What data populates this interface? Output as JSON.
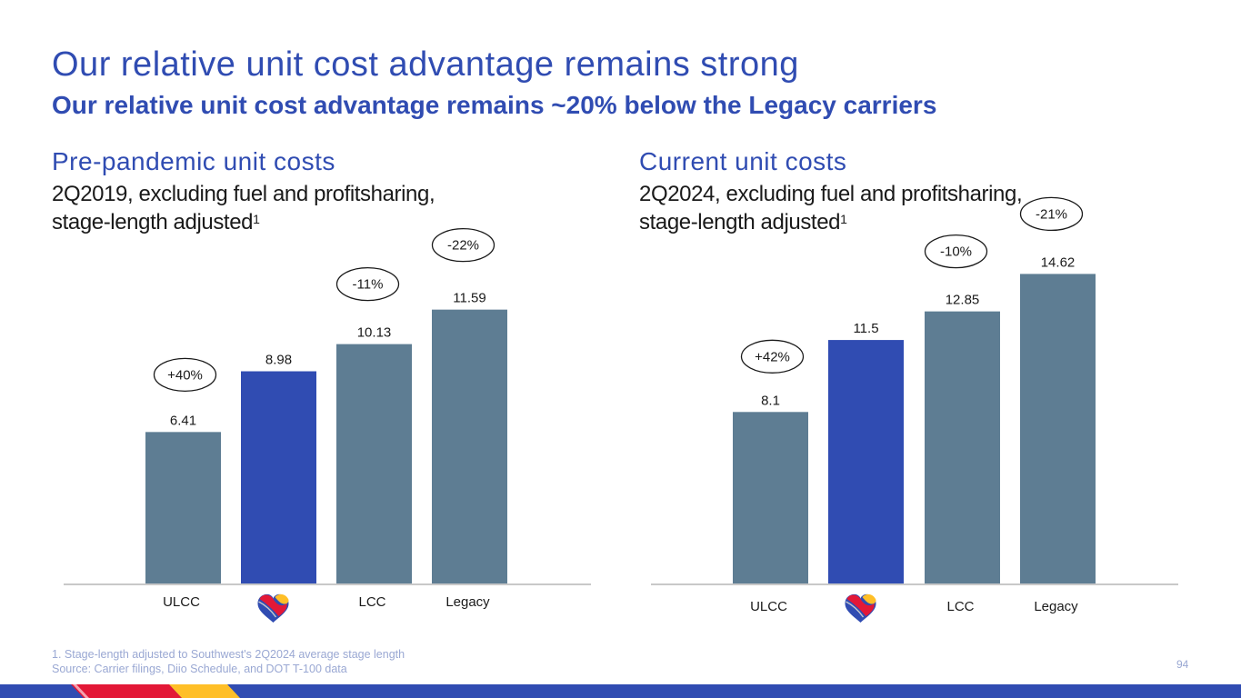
{
  "title": "Our relative unit cost advantage remains strong",
  "subtitle": "Our relative unit cost advantage remains ~20% below the Legacy carriers",
  "left_panel": {
    "heading": "Pre-pandemic unit costs",
    "desc_line1": "2Q2019, excluding fuel and profitsharing,",
    "desc_line2": "stage-length adjusted",
    "footnote_mark": "1"
  },
  "right_panel": {
    "heading": "Current unit costs",
    "desc_line1": "2Q2024, excluding fuel and profitsharing,",
    "desc_line2": "stage-length adjusted",
    "footnote_mark": "1"
  },
  "colors": {
    "brand_blue": "#304CB2",
    "peer_gray": "#5E7D93",
    "axis": "#C8C8C8"
  },
  "chart_data": [
    {
      "type": "bar",
      "title": "Pre-pandemic unit costs",
      "categories": [
        "ULCC",
        "Southwest",
        "LCC",
        "Legacy"
      ],
      "category_labels": [
        "ULCC",
        "",
        "LCC",
        "Legacy"
      ],
      "values": [
        6.41,
        8.98,
        10.13,
        11.59
      ],
      "value_labels": [
        "6.41",
        "8.98",
        "10.13",
        "11.59"
      ],
      "highlight_index": 1,
      "annotations": [
        {
          "category": "ULCC",
          "text": "+40%"
        },
        {
          "category": "LCC",
          "text": "-11%"
        },
        {
          "category": "Legacy",
          "text": "-22%"
        }
      ],
      "ylim": [
        0,
        16
      ]
    },
    {
      "type": "bar",
      "title": "Current unit costs",
      "categories": [
        "ULCC",
        "Southwest",
        "LCC",
        "Legacy"
      ],
      "category_labels": [
        "ULCC",
        "",
        "LCC",
        "Legacy"
      ],
      "values": [
        8.1,
        11.5,
        12.85,
        14.62
      ],
      "value_labels": [
        "8.1",
        "11.5",
        "12.85",
        "14.62"
      ],
      "highlight_index": 1,
      "annotations": [
        {
          "category": "ULCC",
          "text": "+42%"
        },
        {
          "category": "LCC",
          "text": "-10%"
        },
        {
          "category": "Legacy",
          "text": "-21%"
        }
      ],
      "ylim": [
        0,
        18.2
      ]
    }
  ],
  "footnotes": {
    "line1": "1. Stage-length adjusted to Southwest's 2Q2024 average stage length",
    "line2": "Source: Carrier filings, Diio Schedule, and DOT T-100 data"
  },
  "page_number": "94"
}
